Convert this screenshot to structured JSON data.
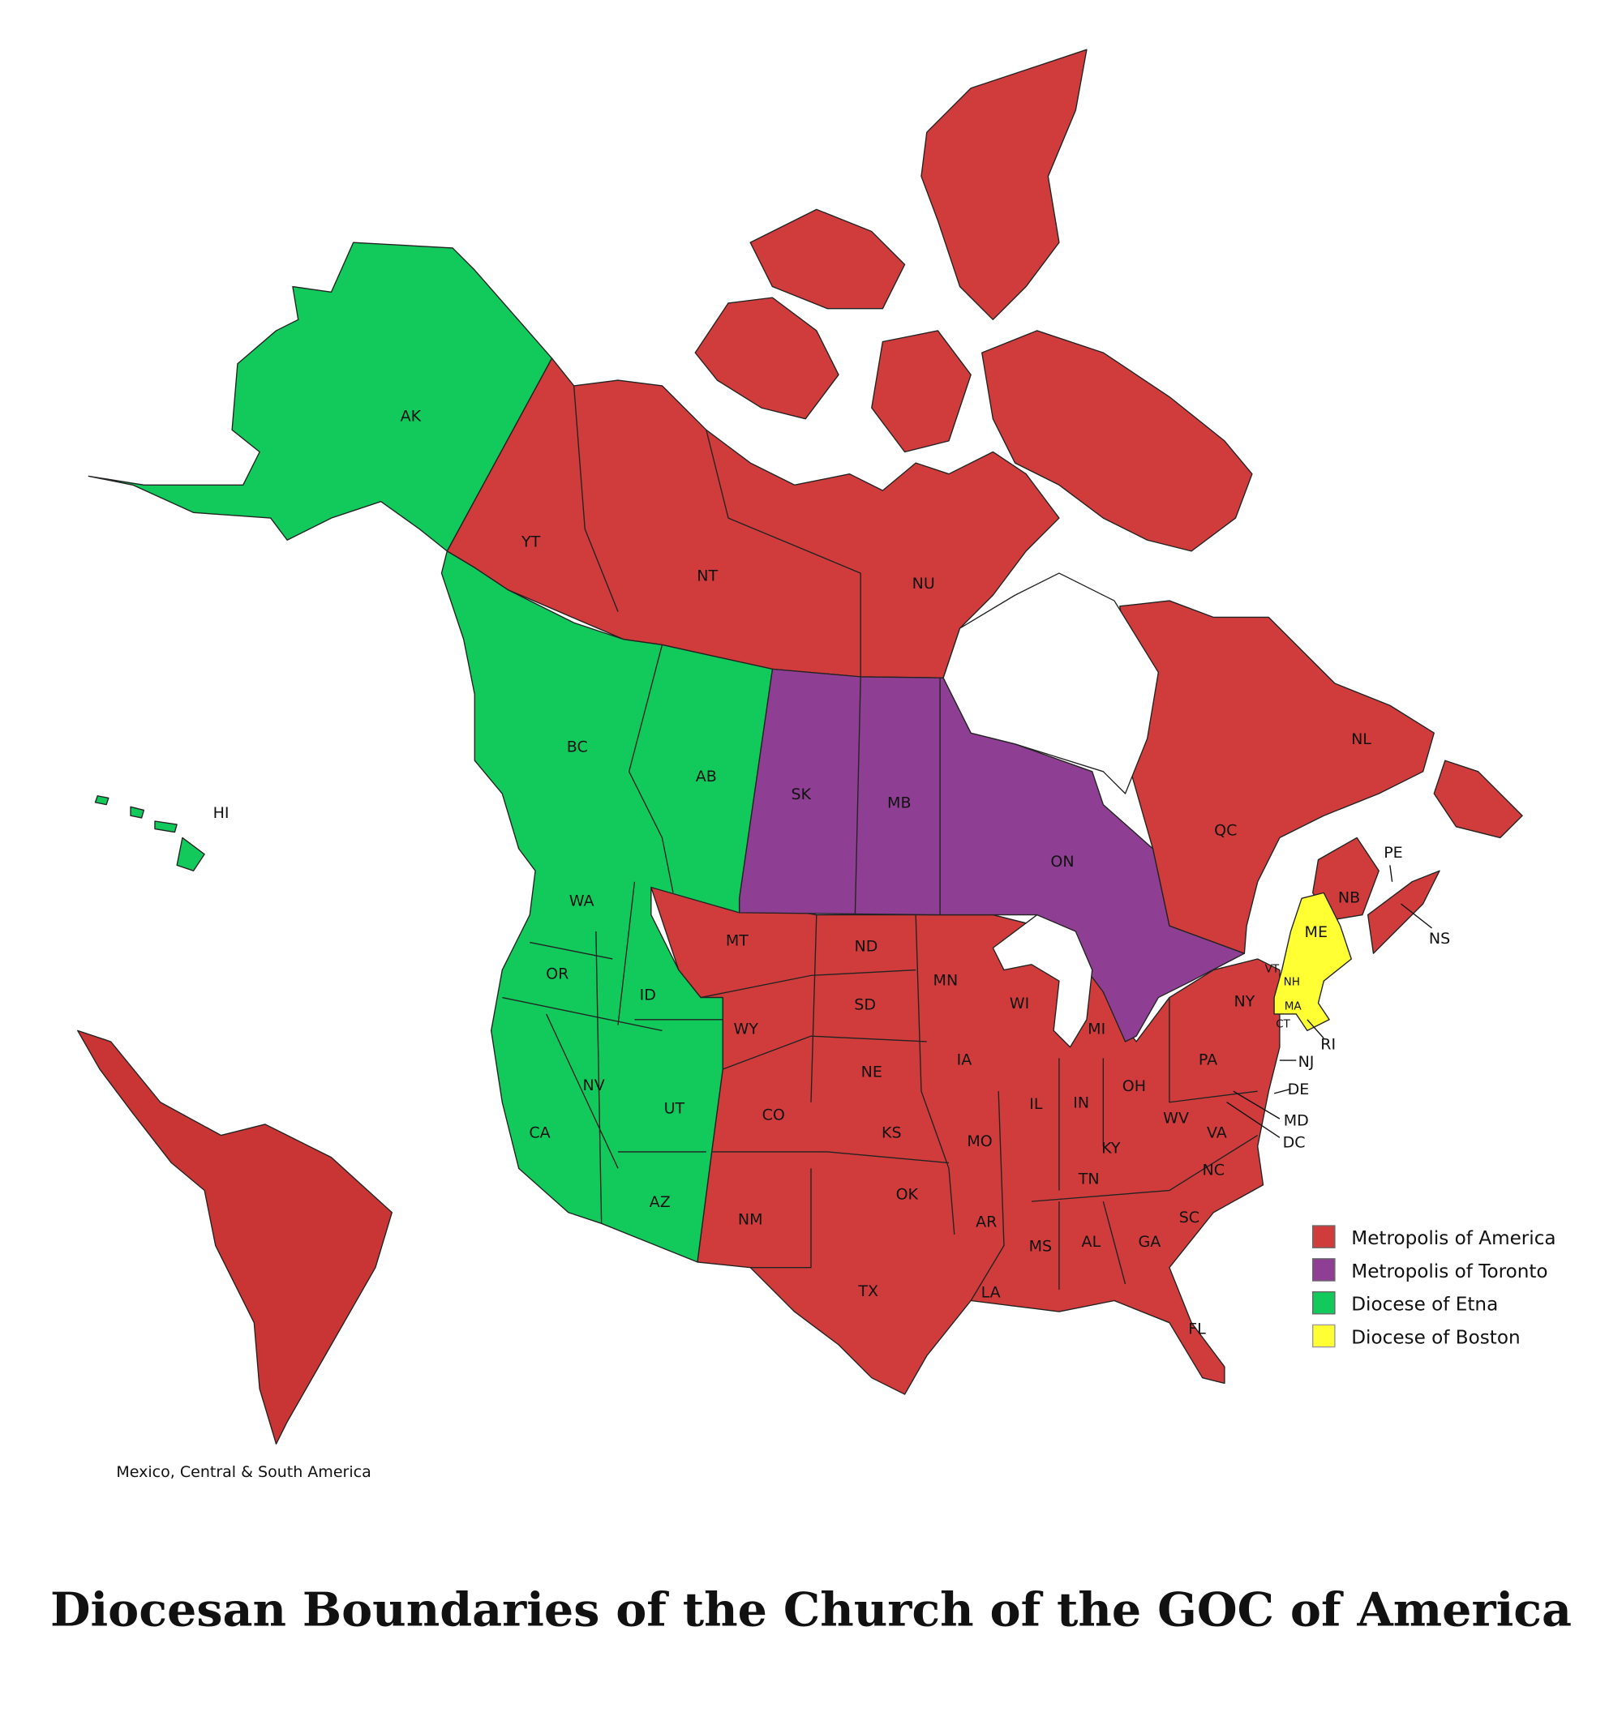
{
  "title": "Diocesan Boundaries of the Church of the GOC of America",
  "inset_caption": "Mexico, Central & South America",
  "colors": {
    "metropolis_of_america": "#d03c3c",
    "metropolis_of_toronto": "#8e3f93",
    "diocese_of_etna": "#12c95c",
    "diocese_of_boston": "#ffff33"
  },
  "legend": [
    {
      "label": "Metropolis of America",
      "color": "#d03c3c"
    },
    {
      "label": "Metropolis of Toronto",
      "color": "#8e3f93"
    },
    {
      "label": "Diocese of Etna",
      "color": "#12c95c"
    },
    {
      "label": "Diocese of Boston",
      "color": "#ffff33"
    }
  ],
  "region_labels": {
    "etna": [
      "AK",
      "HI",
      "BC",
      "AB",
      "WA",
      "OR",
      "ID",
      "NV",
      "UT",
      "CA",
      "AZ"
    ],
    "toronto": [
      "SK",
      "MB",
      "ON"
    ],
    "boston": [
      "ME",
      "NH",
      "MA",
      "RI"
    ],
    "america": [
      "YT",
      "NT",
      "NU",
      "QC",
      "NL",
      "NB",
      "PE",
      "NS",
      "MT",
      "ND",
      "SD",
      "WY",
      "NE",
      "CO",
      "KS",
      "NM",
      "OK",
      "TX",
      "MN",
      "IA",
      "MO",
      "AR",
      "LA",
      "WI",
      "IL",
      "MI",
      "IN",
      "OH",
      "KY",
      "TN",
      "MS",
      "AL",
      "GA",
      "FL",
      "SC",
      "NC",
      "VA",
      "WV",
      "PA",
      "NY",
      "NJ",
      "DE",
      "MD",
      "DC",
      "VT",
      "CT"
    ]
  }
}
